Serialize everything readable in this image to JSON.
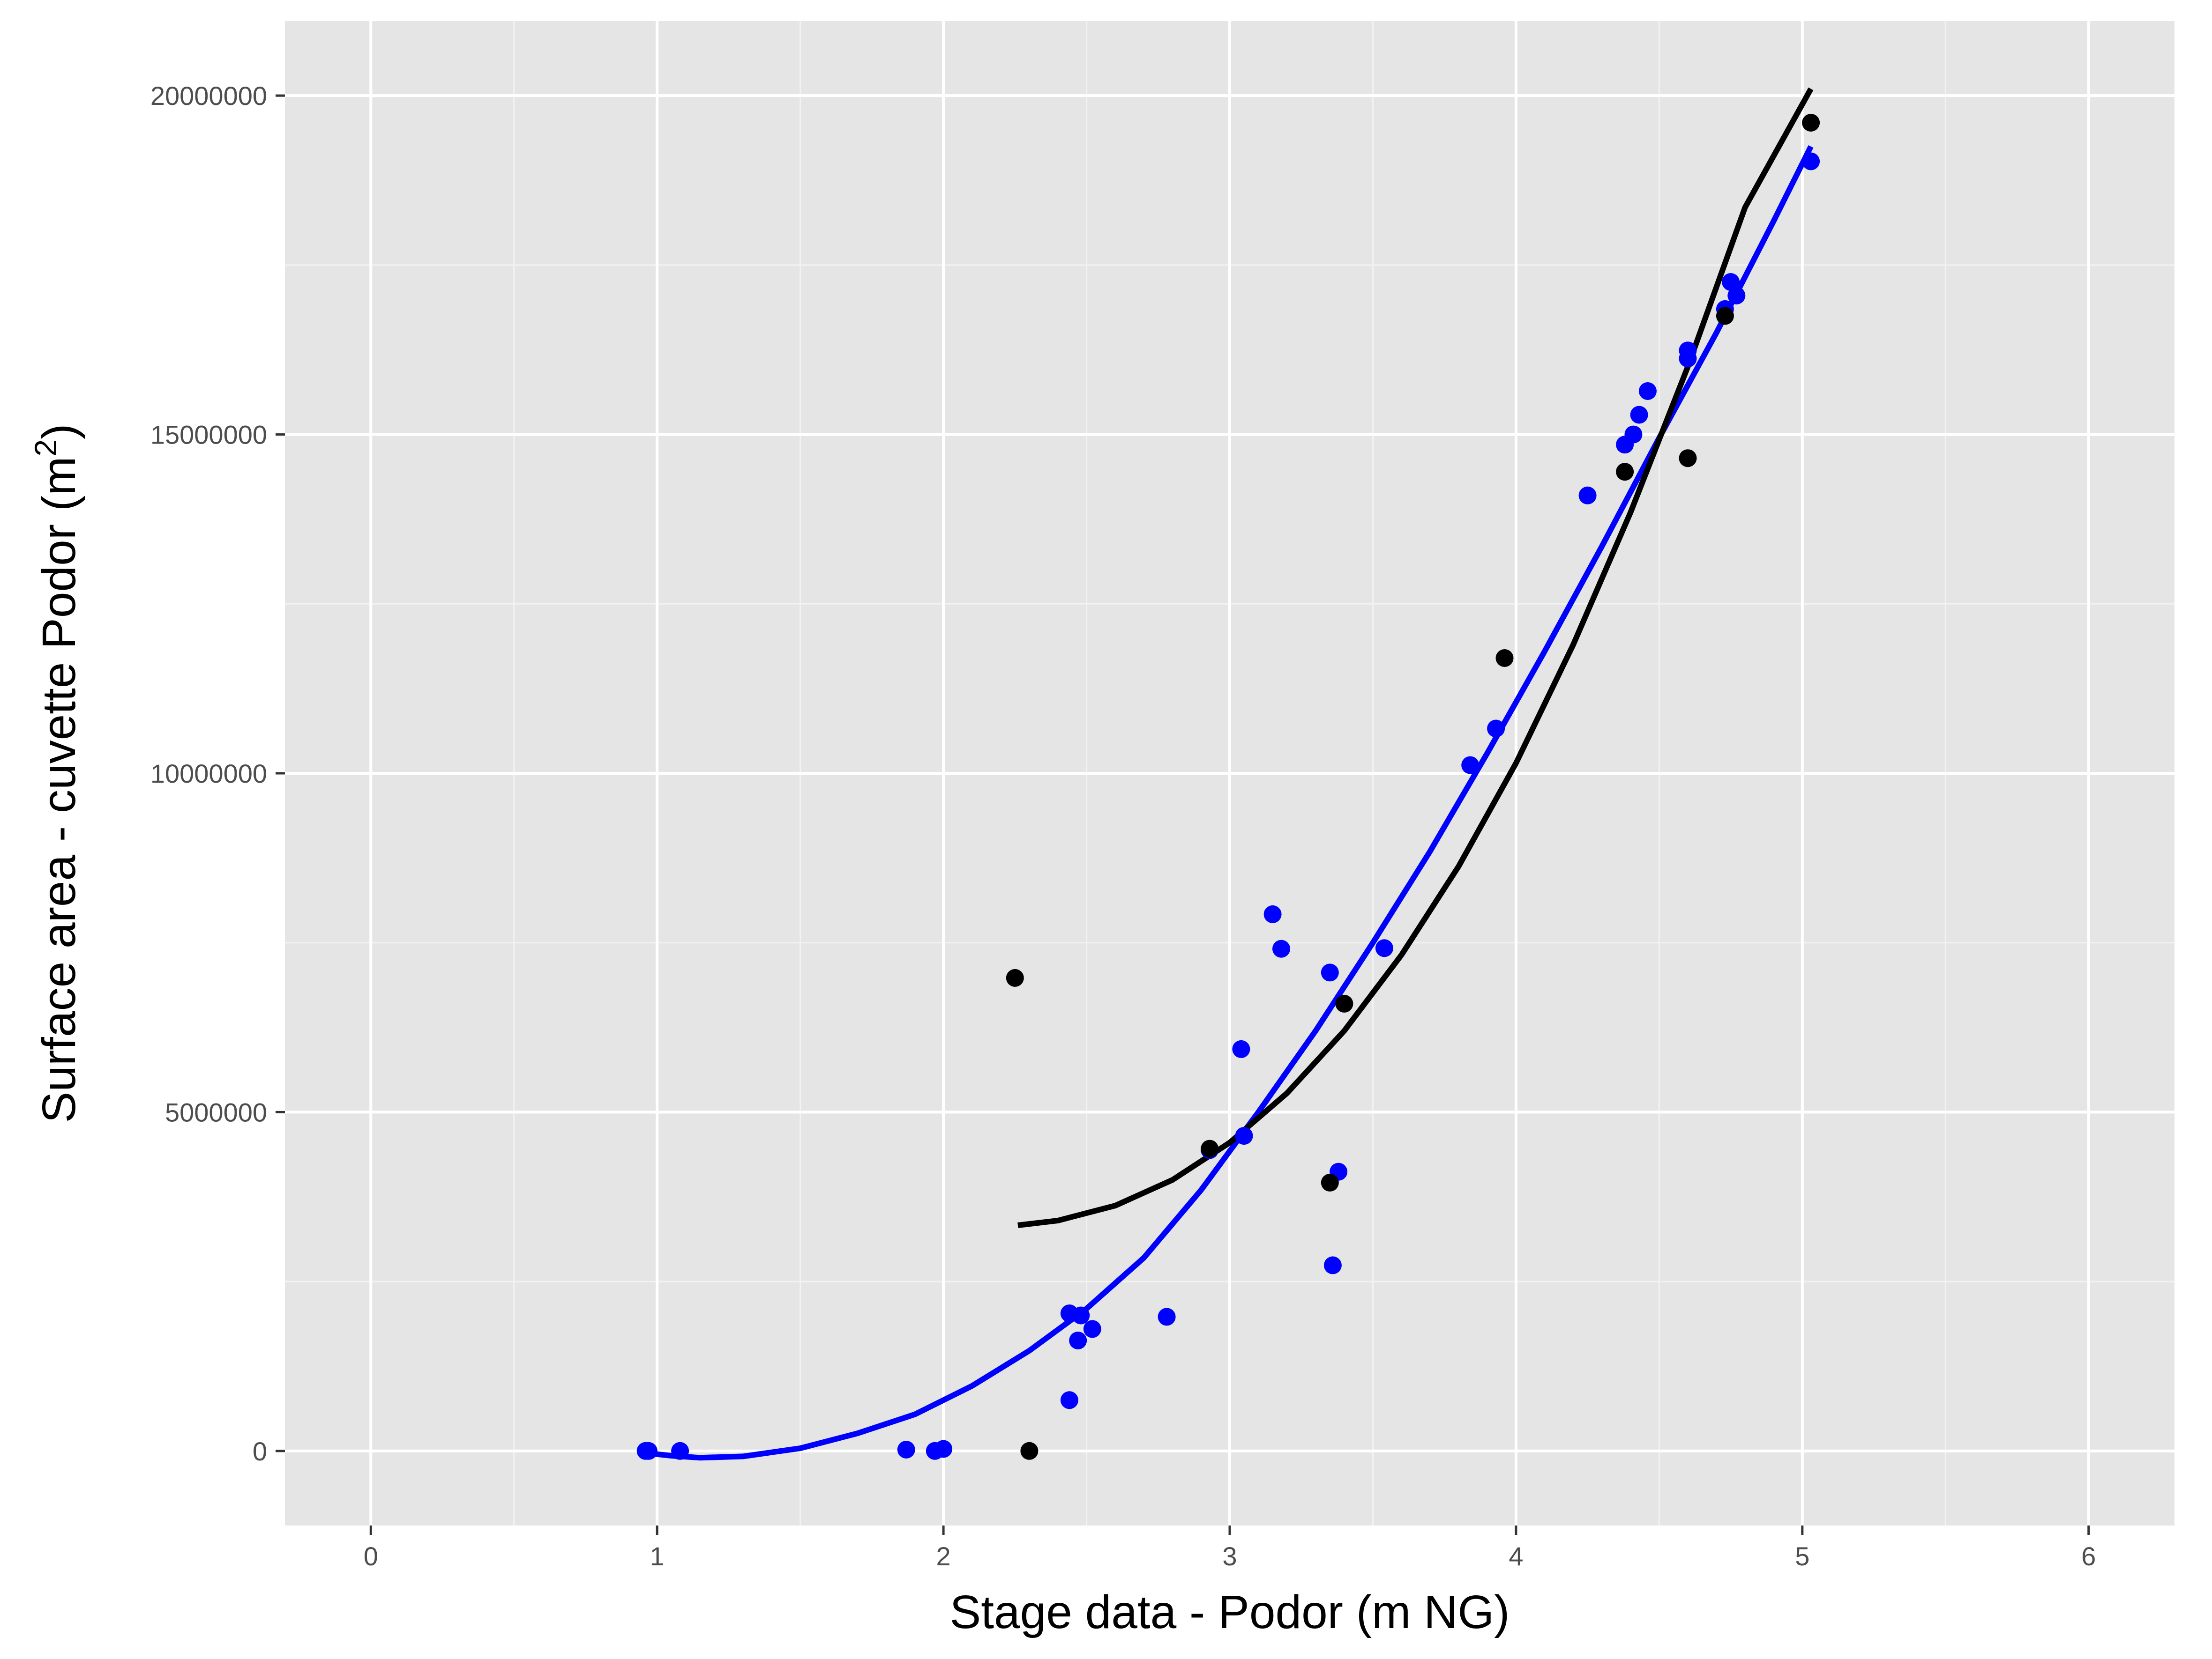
{
  "chart_data": {
    "type": "scatter",
    "title": "",
    "xlabel": "Stage data - Podor (m NG)",
    "ylabel_main": "Surface area - cuvette Podor (m",
    "ylabel_sup": "2",
    "ylabel_close": ")",
    "xlim": [
      -0.3,
      6.3
    ],
    "ylim": [
      -1100000,
      21100000
    ],
    "x_ticks": [
      0,
      1,
      2,
      3,
      4,
      5,
      6
    ],
    "x_tick_labels": [
      "0",
      "1",
      "2",
      "3",
      "4",
      "5",
      "6"
    ],
    "y_ticks": [
      0,
      5000000,
      10000000,
      15000000,
      20000000
    ],
    "y_tick_labels": [
      "0",
      "5000000",
      "10000000",
      "15000000",
      "20000000"
    ],
    "grid": true,
    "legend": "none",
    "series": [
      {
        "color": "#0000ff",
        "points": [
          [
            0.96,
            0
          ],
          [
            0.97,
            0
          ],
          [
            1.08,
            0
          ],
          [
            1.87,
            20000
          ],
          [
            1.97,
            0
          ],
          [
            2.0,
            30000
          ],
          [
            2.44,
            2030000
          ],
          [
            2.48,
            2000000
          ],
          [
            2.44,
            750000
          ],
          [
            2.47,
            1630000
          ],
          [
            2.52,
            1800000
          ],
          [
            2.78,
            1980000
          ],
          [
            2.93,
            4440000
          ],
          [
            3.04,
            5930000
          ],
          [
            3.05,
            4650000
          ],
          [
            3.15,
            7920000
          ],
          [
            3.18,
            7410000
          ],
          [
            3.35,
            7060000
          ],
          [
            3.36,
            2740000
          ],
          [
            3.38,
            4120000
          ],
          [
            3.54,
            7420000
          ],
          [
            3.84,
            10120000
          ],
          [
            3.93,
            10660000
          ],
          [
            4.25,
            14100000
          ],
          [
            4.38,
            14850000
          ],
          [
            4.41,
            15000000
          ],
          [
            4.43,
            15290000
          ],
          [
            4.46,
            15640000
          ],
          [
            4.6,
            16120000
          ],
          [
            4.6,
            16240000
          ],
          [
            4.73,
            16850000
          ],
          [
            4.75,
            17250000
          ],
          [
            4.77,
            17050000
          ],
          [
            5.03,
            19030000
          ]
        ],
        "fit": [
          [
            0.96,
            -30000
          ],
          [
            1.05,
            -70000
          ],
          [
            1.15,
            -100000
          ],
          [
            1.3,
            -80000
          ],
          [
            1.5,
            40000
          ],
          [
            1.7,
            260000
          ],
          [
            1.9,
            540000
          ],
          [
            2.1,
            960000
          ],
          [
            2.3,
            1480000
          ],
          [
            2.5,
            2100000
          ],
          [
            2.7,
            2850000
          ],
          [
            2.9,
            3850000
          ],
          [
            3.1,
            5000000
          ],
          [
            3.3,
            6200000
          ],
          [
            3.5,
            7500000
          ],
          [
            3.7,
            8850000
          ],
          [
            3.9,
            10300000
          ],
          [
            4.1,
            11800000
          ],
          [
            4.3,
            13350000
          ],
          [
            4.5,
            14950000
          ],
          [
            4.7,
            16500000
          ],
          [
            4.9,
            18150000
          ],
          [
            5.03,
            19250000
          ]
        ]
      },
      {
        "color": "#000000",
        "points": [
          [
            2.25,
            6980000
          ],
          [
            2.3,
            0
          ],
          [
            2.93,
            4460000
          ],
          [
            3.35,
            3960000
          ],
          [
            3.4,
            6600000
          ],
          [
            3.96,
            11700000
          ],
          [
            4.38,
            14450000
          ],
          [
            4.6,
            14650000
          ],
          [
            4.73,
            16750000
          ],
          [
            5.03,
            19600000
          ]
        ],
        "fit": [
          [
            2.26,
            3330000
          ],
          [
            2.4,
            3400000
          ],
          [
            2.6,
            3620000
          ],
          [
            2.8,
            4000000
          ],
          [
            3.0,
            4550000
          ],
          [
            3.2,
            5280000
          ],
          [
            3.4,
            6200000
          ],
          [
            3.6,
            7320000
          ],
          [
            3.8,
            8630000
          ],
          [
            4.0,
            10150000
          ],
          [
            4.2,
            11900000
          ],
          [
            4.4,
            13850000
          ],
          [
            4.6,
            16000000
          ],
          [
            4.8,
            18350000
          ],
          [
            5.03,
            20100000
          ]
        ]
      }
    ]
  }
}
